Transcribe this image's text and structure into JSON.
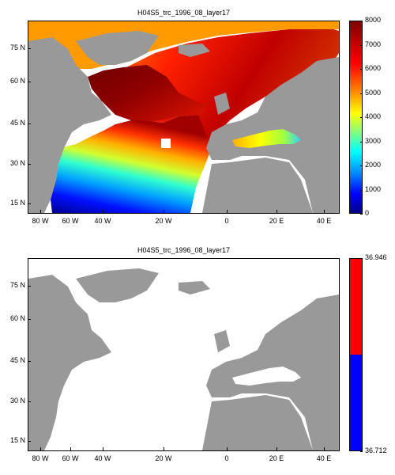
{
  "panels": [
    {
      "title": "H04S5_trc_1996_08_layer17",
      "colorbar": {
        "min": 0,
        "max": 8000,
        "tick_labels": [
          "8000",
          "7000",
          "6000",
          "5000",
          "4000",
          "3000",
          "2000",
          "1000",
          "0"
        ],
        "colormap": "jet"
      }
    },
    {
      "title": "H04S5_trc_1996_08_layer17",
      "colorbar": {
        "tick_labels": [
          "36.946",
          "36.712"
        ],
        "colors": [
          "#ff0000",
          "#0000ff"
        ]
      }
    }
  ],
  "axes": {
    "y_labels": [
      "75 N",
      "60 N",
      "45 N",
      "30 N",
      "15 N"
    ],
    "x_labels": [
      "80 W",
      "60 W",
      "40 W",
      "20 W",
      "0",
      "20 E",
      "40 E"
    ]
  },
  "colors": {
    "land": "#999999",
    "ocean_no_data": "#ffffff"
  }
}
